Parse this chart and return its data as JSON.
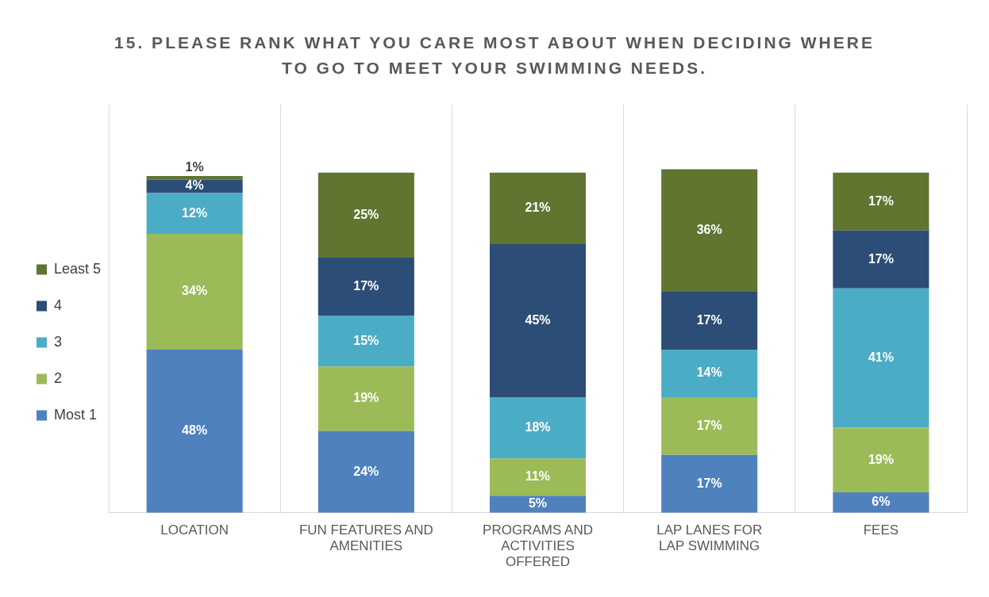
{
  "chart_data": {
    "type": "bar",
    "stacked": true,
    "title": "15. PLEASE RANK WHAT YOU CARE MOST ABOUT WHEN DECIDING WHERE TO GO TO MEET YOUR SWIMMING NEEDS.",
    "categories": [
      "LOCATION",
      "FUN FEATURES AND AMENITIES",
      "PROGRAMS AND ACTIVITIES OFFERED",
      "LAP LANES FOR LAP SWIMMING",
      "FEES"
    ],
    "series": [
      {
        "name": "Most 1",
        "color": "#4f81bd",
        "values": [
          48,
          24,
          5,
          17,
          6
        ],
        "value_labels": [
          "48%",
          "24%",
          "5%",
          "17%",
          "6%"
        ]
      },
      {
        "name": "2",
        "color": "#9bbb59",
        "values": [
          34,
          19,
          11,
          17,
          19
        ],
        "value_labels": [
          "34%",
          "19%",
          "11%",
          "17%",
          "19%"
        ]
      },
      {
        "name": "3",
        "color": "#4bacc6",
        "values": [
          12,
          15,
          18,
          14,
          41
        ],
        "value_labels": [
          "12%",
          "15%",
          "18%",
          "14%",
          "41%"
        ]
      },
      {
        "name": "4",
        "color": "#2c4d75",
        "values": [
          4,
          17,
          45,
          17,
          17
        ],
        "value_labels": [
          "4%",
          "17%",
          "45%",
          "17%",
          "17%"
        ]
      },
      {
        "name": "Least 5",
        "color": "#5f7530",
        "values": [
          1,
          25,
          21,
          36,
          17
        ],
        "value_labels": [
          "1%",
          "25%",
          "21%",
          "36%",
          "17%"
        ]
      }
    ],
    "legend": "left",
    "grid": "x"
  }
}
